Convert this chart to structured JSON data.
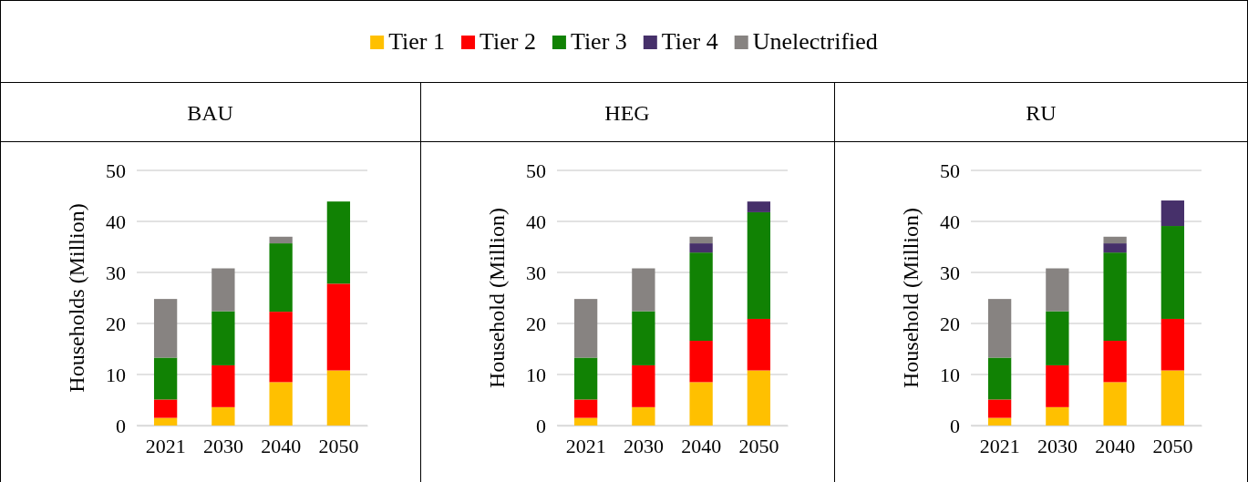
{
  "chart_data": [
    {
      "type": "bar",
      "title": "BAU",
      "stacked": true,
      "legend": "top",
      "grid": "y",
      "ylabel": "Households (Million)",
      "categories": [
        "2021",
        "2030",
        "2040",
        "2050"
      ],
      "ylim": [
        0,
        50
      ],
      "yticks": [
        0,
        10,
        20,
        30,
        40,
        50
      ],
      "series": [
        {
          "name": "Tier 1",
          "color": "#ffc000",
          "values": [
            1.5,
            3.6,
            8.5,
            10.8
          ]
        },
        {
          "name": "Tier 2",
          "color": "#ff0000",
          "values": [
            3.6,
            8.2,
            13.8,
            17.0
          ]
        },
        {
          "name": "Tier 3",
          "color": "#118204",
          "values": [
            8.2,
            10.6,
            13.4,
            16.1
          ]
        },
        {
          "name": "Tier 4",
          "color": "#46306a",
          "values": [
            0,
            0,
            0,
            0
          ]
        },
        {
          "name": "Unelectrified",
          "color": "#878381",
          "values": [
            11.5,
            8.4,
            1.3,
            0
          ]
        }
      ]
    },
    {
      "type": "bar",
      "title": "HEG",
      "stacked": true,
      "grid": "y",
      "ylabel": "Household (Million)",
      "categories": [
        "2021",
        "2030",
        "2040",
        "2050"
      ],
      "ylim": [
        0,
        50
      ],
      "yticks": [
        0,
        10,
        20,
        30,
        40,
        50
      ],
      "series": [
        {
          "color": "#ffc000",
          "values": [
            1.5,
            3.6,
            8.5,
            10.8
          ]
        },
        {
          "color": "#ff0000",
          "values": [
            3.6,
            8.2,
            8.1,
            10.1
          ]
        },
        {
          "color": "#118204",
          "values": [
            8.2,
            10.6,
            17.3,
            20.9
          ]
        },
        {
          "color": "#46306a",
          "values": [
            0,
            0,
            1.8,
            2.1
          ]
        },
        {
          "color": "#878381",
          "values": [
            11.5,
            8.4,
            1.3,
            0
          ]
        }
      ]
    },
    {
      "type": "bar",
      "title": "RU",
      "stacked": true,
      "grid": "y",
      "ylabel": "Household (Million)",
      "categories": [
        "2021",
        "2030",
        "2040",
        "2050"
      ],
      "ylim": [
        0,
        50
      ],
      "yticks": [
        0,
        10,
        20,
        30,
        40,
        50
      ],
      "series": [
        {
          "color": "#ffc000",
          "values": [
            1.5,
            3.6,
            8.5,
            10.8
          ]
        },
        {
          "color": "#ff0000",
          "values": [
            3.6,
            8.2,
            8.1,
            10.1
          ]
        },
        {
          "color": "#118204",
          "values": [
            8.2,
            10.6,
            17.3,
            18.2
          ]
        },
        {
          "color": "#46306a",
          "values": [
            0,
            0,
            1.8,
            5.0
          ]
        },
        {
          "color": "#878381",
          "values": [
            11.5,
            8.4,
            1.3,
            0
          ]
        }
      ]
    }
  ]
}
